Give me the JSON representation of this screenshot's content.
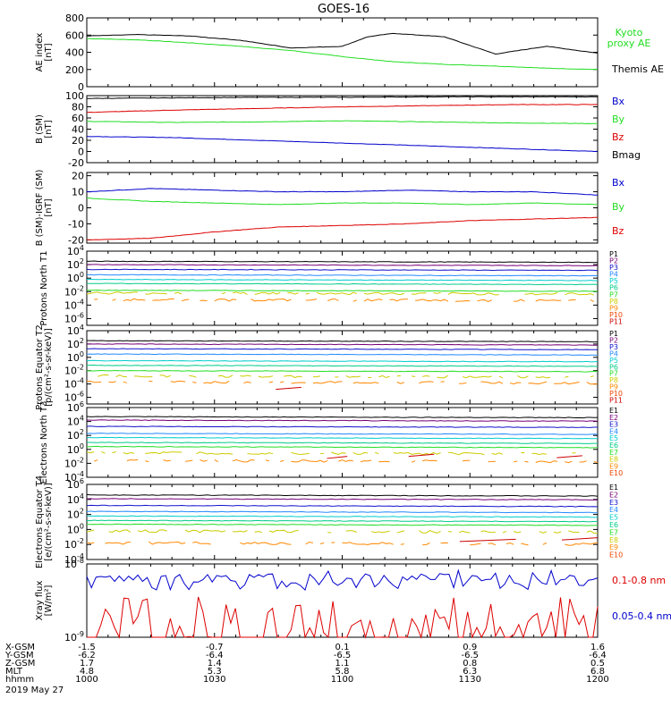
{
  "title": "GOES-16",
  "colors": {
    "black": "#000000",
    "green": "#22dd22",
    "red": "#dd0000",
    "blue": "#0000cc",
    "channels": [
      "#000000",
      "#770077",
      "#1111cc",
      "#2288ff",
      "#00cccc",
      "#00cc88",
      "#22dd22",
      "#cccc00",
      "#ff8800",
      "#ee4400",
      "#cc0000"
    ]
  },
  "x_axis": {
    "ticks": [
      1000,
      1030,
      1100,
      1130,
      1200
    ],
    "rows": [
      {
        "label": "X-GSM",
        "values": [
          "-1.5",
          "-0.7",
          "0.1",
          "0.9",
          "1.6"
        ]
      },
      {
        "label": "Y-GSM",
        "values": [
          "-6.2",
          "-6.4",
          "-6.5",
          "-6.5",
          "-6.4"
        ]
      },
      {
        "label": "Z-GSM",
        "values": [
          "1.7",
          "1.4",
          "1.1",
          "0.8",
          "0.5"
        ]
      },
      {
        "label": "MLT",
        "values": [
          "4.8",
          "5.3",
          "5.8",
          "6.3",
          "6.8"
        ]
      },
      {
        "label": "hhmm",
        "values": [
          "1000",
          "1030",
          "1100",
          "1130",
          "1200"
        ]
      }
    ],
    "date": "2019 May 27"
  },
  "chart_data": [
    {
      "type": "line",
      "ylabel": "AE index [nT]",
      "ylim": [
        0,
        800
      ],
      "yticks": [
        "0",
        "200",
        "400",
        "600",
        "800"
      ],
      "x": [
        1000,
        1012,
        1024,
        1036,
        1048,
        1100,
        1106,
        1112,
        1124,
        1136,
        1148,
        1200
      ],
      "series": [
        {
          "name": "Kyoto proxy AE",
          "color": "green",
          "values": [
            560,
            545,
            510,
            470,
            420,
            350,
            320,
            290,
            260,
            240,
            215,
            200
          ]
        },
        {
          "name": "Themis AE",
          "color": "black",
          "values": [
            590,
            605,
            590,
            540,
            450,
            470,
            580,
            620,
            580,
            380,
            470,
            390
          ]
        }
      ]
    },
    {
      "type": "line",
      "ylabel": "B (SM) [nT]",
      "ylim": [
        -20,
        100
      ],
      "yticks": [
        "-20",
        "0",
        "20",
        "40",
        "60",
        "80",
        "100"
      ],
      "x": [
        1000,
        1020,
        1040,
        1100,
        1120,
        1140,
        1200
      ],
      "series": [
        {
          "name": "Bx",
          "color": "blue",
          "values": [
            27,
            25,
            20,
            15,
            10,
            5,
            0
          ]
        },
        {
          "name": "By",
          "color": "green",
          "values": [
            54,
            52,
            53,
            55,
            53,
            51,
            50
          ]
        },
        {
          "name": "Bz",
          "color": "red",
          "values": [
            70,
            74,
            77,
            80,
            82,
            84,
            84
          ]
        },
        {
          "name": "Bmag",
          "color": "black",
          "values": [
            95,
            96,
            97,
            97,
            98,
            98,
            98
          ]
        }
      ]
    },
    {
      "type": "line",
      "ylabel": "B (SM)-IGRF (SM) [nT]",
      "ylim": [
        -22,
        22
      ],
      "yticks": [
        "-20",
        "-10",
        "0",
        "10",
        "20"
      ],
      "x": [
        1000,
        1015,
        1030,
        1045,
        1100,
        1115,
        1130,
        1145,
        1200
      ],
      "series": [
        {
          "name": "Bx",
          "color": "blue",
          "values": [
            10,
            12,
            11,
            10,
            10,
            11,
            10,
            10,
            8
          ]
        },
        {
          "name": "By",
          "color": "green",
          "values": [
            6,
            4,
            3,
            2,
            3,
            3,
            2,
            3,
            2
          ]
        },
        {
          "name": "Bz",
          "color": "red",
          "values": [
            -20,
            -19,
            -15,
            -12,
            -11,
            -10,
            -8,
            -7,
            -6
          ]
        }
      ]
    },
    {
      "type": "line",
      "ylabel": "Protons North T1",
      "log": true,
      "ylim": [
        -7,
        4
      ],
      "yticks": [
        "10^4",
        "10^2",
        "10^0",
        "10^-2",
        "10^-4",
        "10^-6"
      ],
      "channels": [
        "P1",
        "P2",
        "P3",
        "P4",
        "P5",
        "P6",
        "P7",
        "P8",
        "P9",
        "P10",
        "P11"
      ],
      "levels": [
        2.5,
        2.0,
        1.3,
        0.5,
        -0.2,
        -0.8,
        -1.8,
        -2.2,
        -3.2
      ]
    },
    {
      "type": "line",
      "ylabel": "Protons Equator T2 [p/(cm²-s-sr-keV)]",
      "log": true,
      "ylim": [
        -7,
        4
      ],
      "yticks": [
        "10^4",
        "10^2",
        "10^0",
        "10^-2",
        "10^-4",
        "10^-6"
      ],
      "channels": [
        "P1",
        "P2",
        "P3",
        "P4",
        "P5",
        "P6",
        "P7",
        "P8",
        "P9",
        "P10",
        "P11"
      ],
      "levels": [
        2.5,
        2.0,
        1.3,
        0.5,
        -0.5,
        -1.2,
        -2.0,
        -2.8,
        -3.7
      ]
    },
    {
      "type": "line",
      "ylabel": "Electrons North T3",
      "log": true,
      "ylim": [
        -4,
        6
      ],
      "yticks": [
        "10^6",
        "10^4",
        "10^2",
        "10^0",
        "10^-2",
        "10^-4"
      ],
      "channels": [
        "E1",
        "E2",
        "E3",
        "E4",
        "E5",
        "E6",
        "E7",
        "E8",
        "E9",
        "E10"
      ],
      "levels": [
        4.7,
        4.2,
        3.3,
        2.3,
        1.7,
        1.0,
        0.4,
        -0.5,
        -1.6
      ]
    },
    {
      "type": "line",
      "ylabel": "Electrons Equator T4 [e/(cm²-s-sr-keV)]",
      "log": true,
      "ylim": [
        -4,
        6
      ],
      "yticks": [
        "10^6",
        "10^4",
        "10^2",
        "10^0",
        "10^-2",
        "10^-4"
      ],
      "channels": [
        "E1",
        "E2",
        "E3",
        "E4",
        "E5",
        "E6",
        "E7",
        "E8",
        "E9",
        "E10"
      ],
      "levels": [
        4.6,
        4.1,
        3.2,
        2.4,
        1.8,
        1.2,
        0.7,
        -0.2,
        -1.8
      ]
    },
    {
      "type": "line",
      "ylabel": "Xray flux [W/m²]",
      "log": true,
      "ylim": [
        -9,
        -8
      ],
      "yticks": [
        "10^-8",
        "10^-9"
      ],
      "series": [
        {
          "name": "0.1-0.8 nm",
          "color": "red"
        },
        {
          "name": "0.05-0.4 nm",
          "color": "blue"
        }
      ]
    }
  ]
}
